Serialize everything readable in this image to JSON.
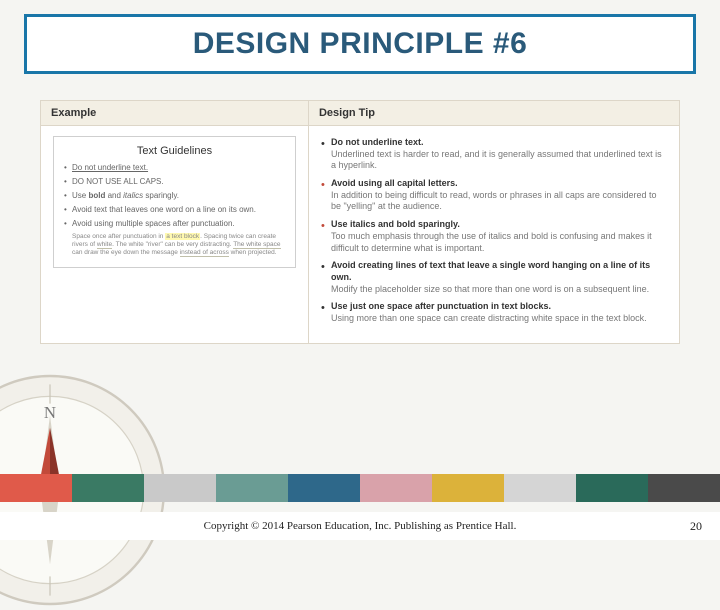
{
  "title": "DESIGN PRINCIPLE #6",
  "table": {
    "headers": {
      "left": "Example",
      "right": "Design Tip"
    },
    "example": {
      "card_title": "Text Guidelines",
      "items": [
        "Do not underline text.",
        "DO NOT USE ALL CAPS.",
        "Use bold and italics sparingly.",
        "Avoid text that leaves one word on a line on its own.",
        "Avoid using multiple spaces after punctuation."
      ],
      "fineprint": "Space once after punctuation in a text block. Spacing twice can create rivers of white. The white \"river\" can be very distracting. The white space can draw the eye down the message instead of across when projected."
    },
    "tips": [
      {
        "bold": "Do not underline text.",
        "detail": "Underlined text is harder to read, and it is generally assumed that underlined text is a hyperlink.",
        "accent": false
      },
      {
        "bold": "Avoid using all capital letters.",
        "detail": "In addition to being difficult to read, words or phrases in all caps are considered to be \"yelling\" at the audience.",
        "accent": true
      },
      {
        "bold": "Use italics and bold sparingly.",
        "detail": "Too much emphasis through the use of italics and bold is confusing and makes it difficult to determine what is important.",
        "accent": true
      },
      {
        "bold": "Avoid creating lines of text that leave a single word hanging on a line of its own.",
        "detail": "Modify the placeholder size so that more than one word is on a subsequent line.",
        "accent": false
      },
      {
        "bold": "Use just one space after punctuation in text blocks.",
        "detail": "Using more than one space can create distracting white space in the text block.",
        "accent": false
      }
    ]
  },
  "compass": {
    "label_n": "N"
  },
  "color_strip": [
    "#e05a4a",
    "#3a7a64",
    "#c9c9c9",
    "#6a9c94",
    "#2e688a",
    "#d9a2aa",
    "#dcb23a",
    "#d5d5d5",
    "#2a6a5a",
    "#4a4a4a"
  ],
  "footer": {
    "copyright": "Copyright © 2014 Pearson Education, Inc. Publishing as Prentice Hall.",
    "page": "20"
  },
  "styles": {
    "title_border": "#1976a8",
    "title_color": "#2a5a7a",
    "header_bg": "#f3efe4",
    "border_color": "#ddd6c8"
  }
}
